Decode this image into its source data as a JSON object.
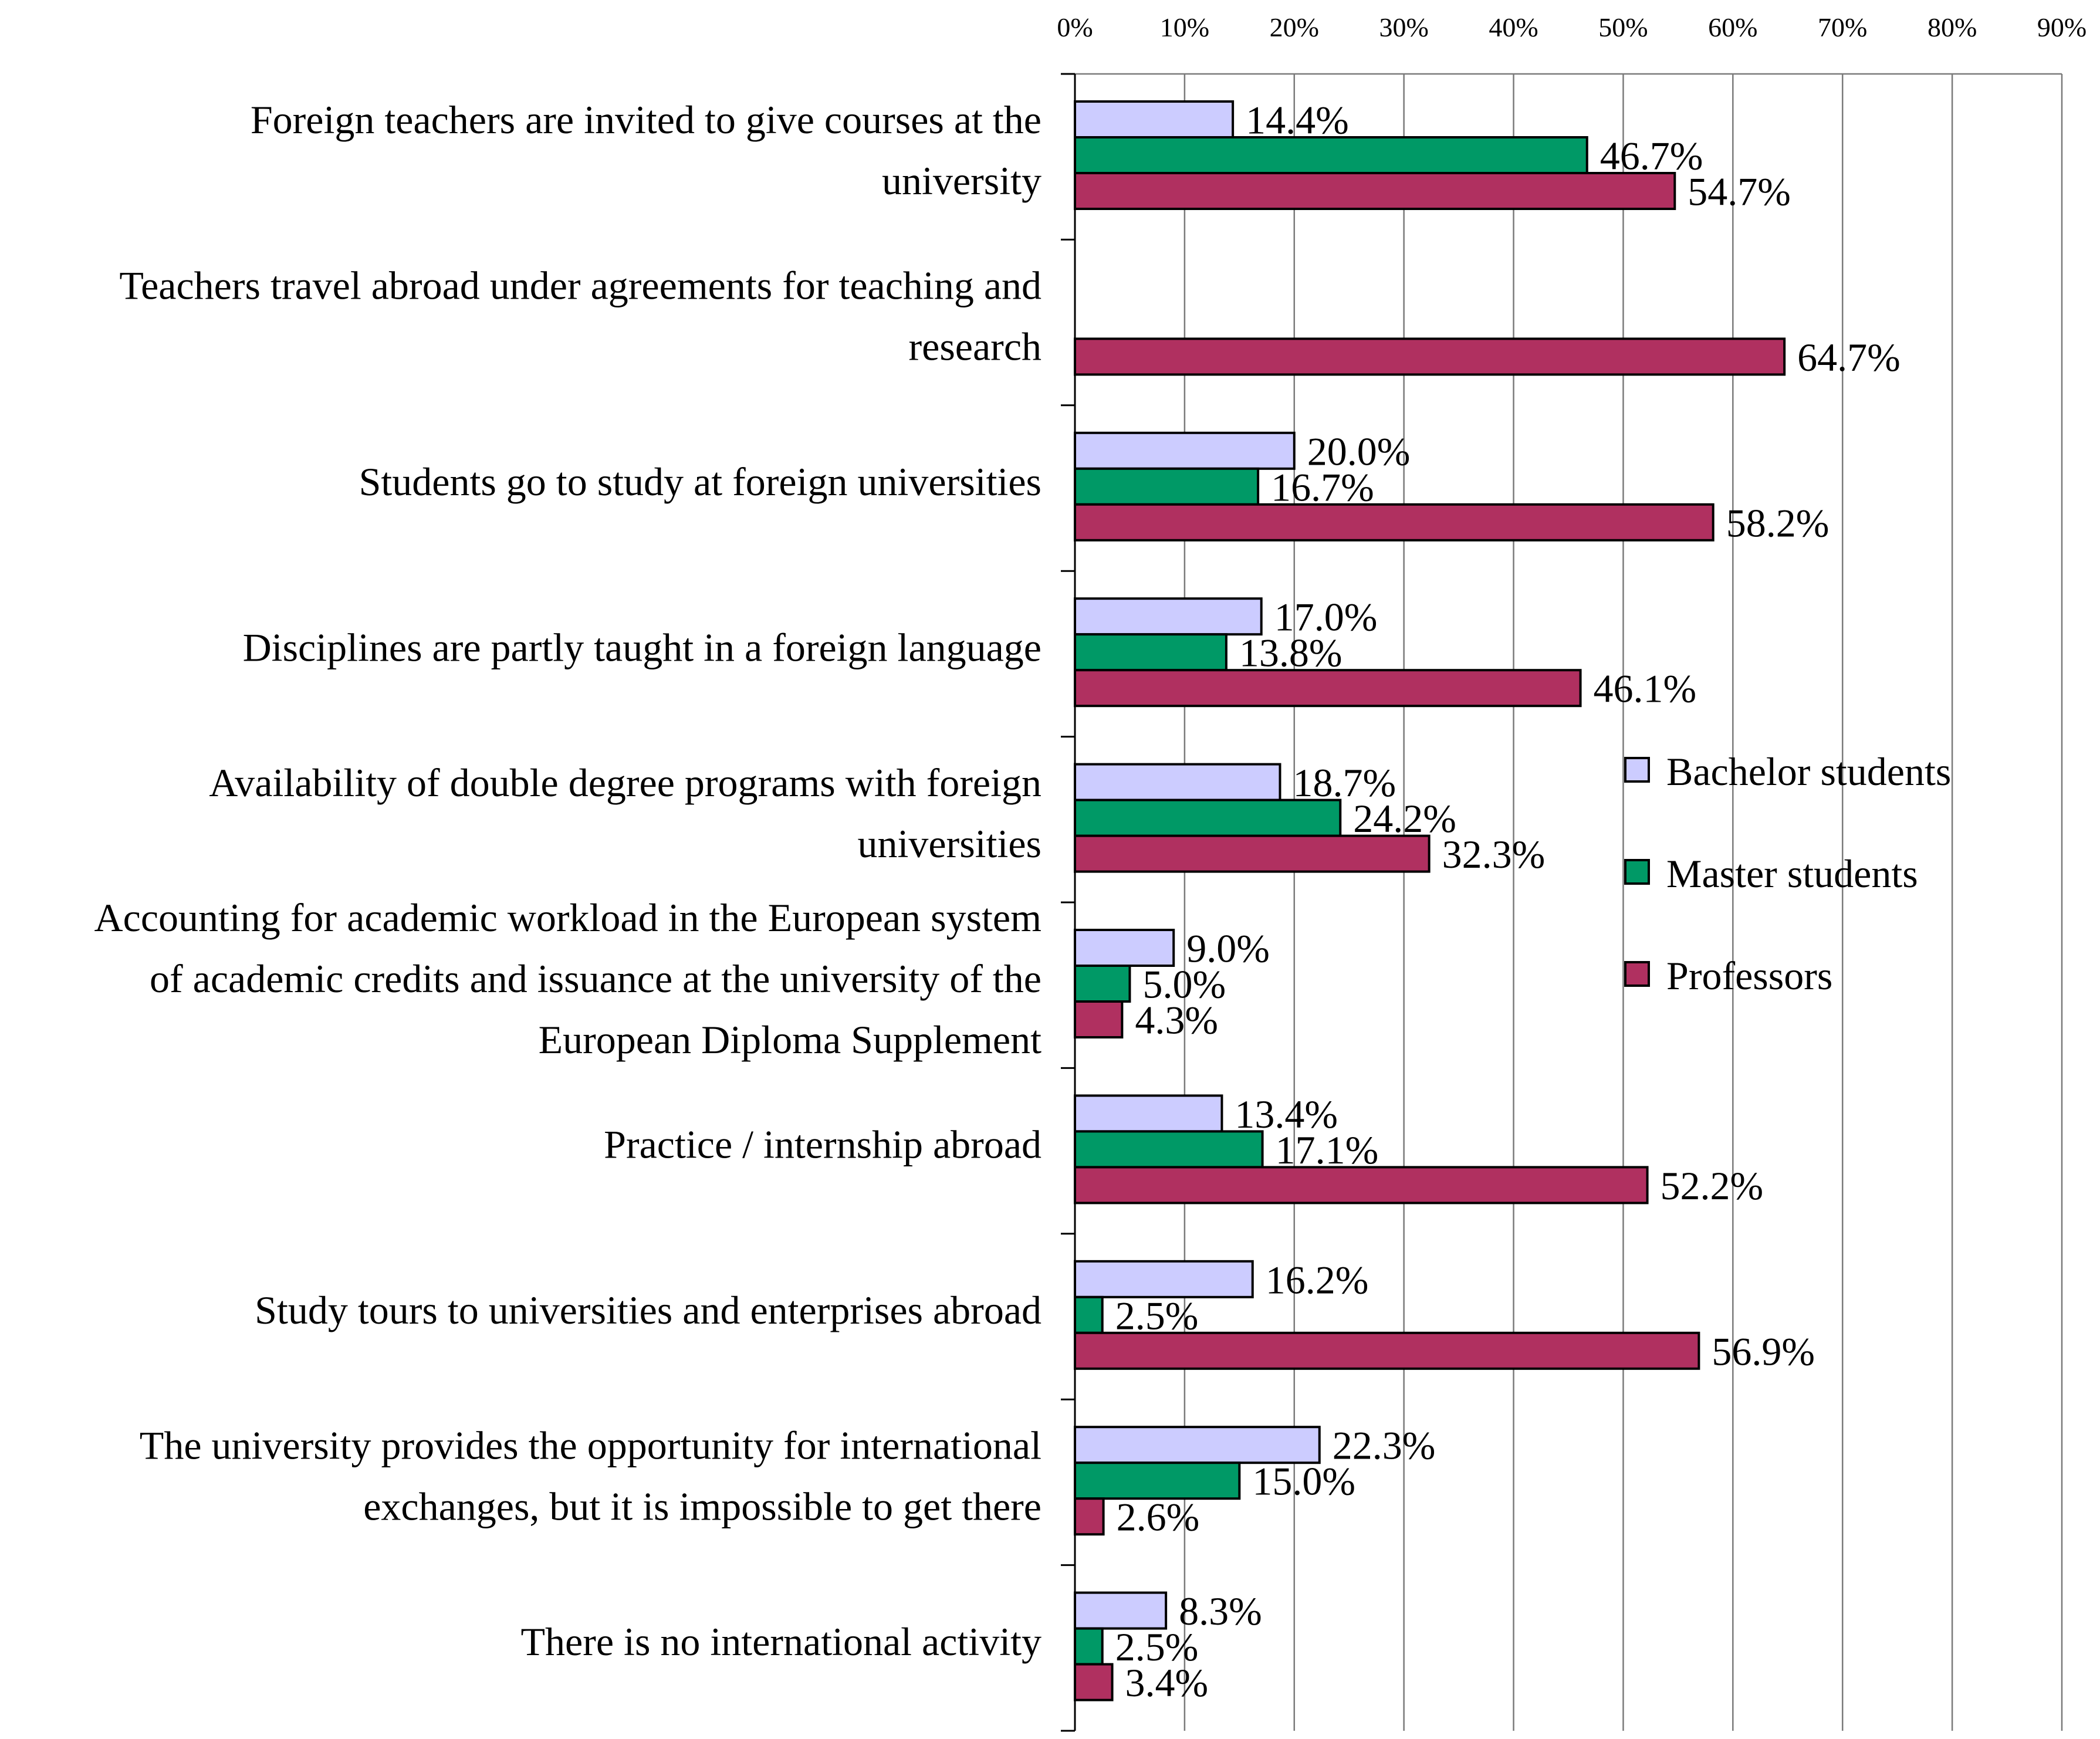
{
  "chart_data": {
    "type": "bar",
    "orientation": "horizontal",
    "title": "",
    "xlabel": "",
    "ylabel": "",
    "xlim": [
      0,
      90
    ],
    "x_ticks": [
      "0%",
      "10%",
      "20%",
      "30%",
      "40%",
      "50%",
      "60%",
      "70%",
      "80%",
      "90%"
    ],
    "grid": true,
    "legend_position": "right",
    "categories": [
      [
        "Foreign teachers are invited to give courses at the",
        "university"
      ],
      [
        "Teachers travel abroad under agreements for teaching and",
        "research"
      ],
      [
        "Students go to study at foreign universities"
      ],
      [
        "Disciplines are partly taught in a foreign language"
      ],
      [
        "Availability of double degree programs with foreign",
        "universities"
      ],
      [
        "Accounting for academic workload in the European system",
        "of academic credits and issuance at the university of the",
        "European Diploma Supplement"
      ],
      [
        "Practice / internship abroad"
      ],
      [
        "Study tours to universities and enterprises abroad"
      ],
      [
        "The university provides the opportunity for international",
        "exchanges, but it is impossible to get there"
      ],
      [
        "There is no international activity"
      ]
    ],
    "series": [
      {
        "name": "Bachelor students",
        "color": "#ccccff",
        "values": [
          14.4,
          null,
          20.0,
          17.0,
          18.7,
          9.0,
          13.4,
          16.2,
          22.3,
          8.3
        ],
        "labels": [
          "14.4%",
          "",
          "20.0%",
          "17.0%",
          "18.7%",
          "9.0%",
          "13.4%",
          "16.2%",
          "22.3%",
          "8.3%"
        ]
      },
      {
        "name": "Master students",
        "color": "#009966",
        "values": [
          46.7,
          null,
          16.7,
          13.8,
          24.2,
          5.0,
          17.1,
          2.5,
          15.0,
          2.5
        ],
        "labels": [
          "46.7%",
          "",
          "16.7%",
          "13.8%",
          "24.2%",
          "5.0%",
          "17.1%",
          "2.5%",
          "15.0%",
          "2.5%"
        ]
      },
      {
        "name": "Professors",
        "color": "#b03060",
        "values": [
          54.7,
          64.7,
          58.2,
          46.1,
          32.3,
          4.3,
          52.2,
          56.9,
          2.6,
          3.4
        ],
        "labels": [
          "54.7%",
          "64.7%",
          "58.2%",
          "46.1%",
          "32.3%",
          "4.3%",
          "52.2%",
          "56.9%",
          "2.6%",
          "3.4%"
        ]
      }
    ]
  }
}
